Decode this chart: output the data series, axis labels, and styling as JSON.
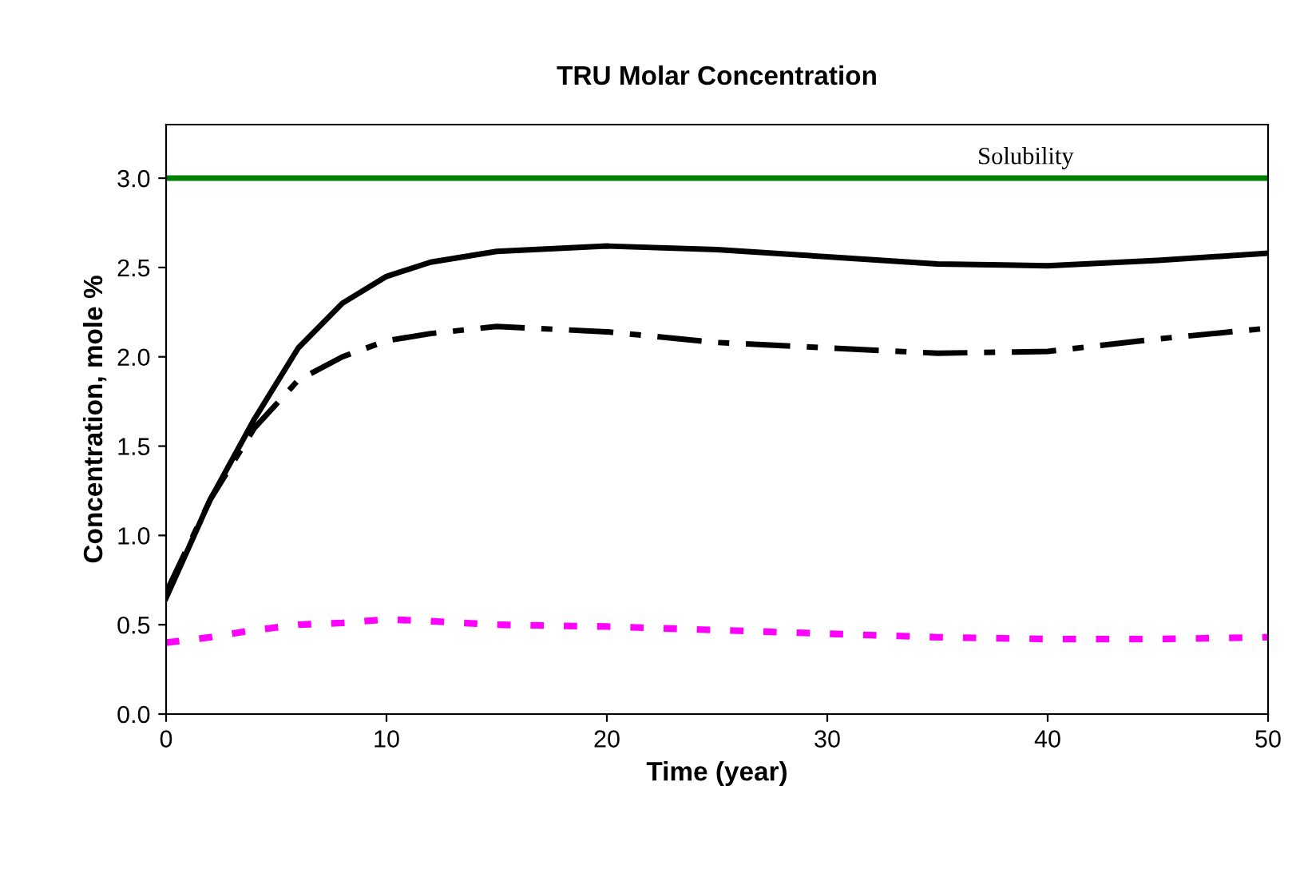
{
  "chart_data": {
    "type": "line",
    "title": "TRU Molar Concentration",
    "xlabel": "Time (year)",
    "ylabel": "Concentration, mole %",
    "x": [
      0,
      2,
      4,
      6,
      8,
      10,
      12,
      15,
      20,
      25,
      30,
      35,
      40,
      45,
      50
    ],
    "series": [
      {
        "color": "#000000",
        "line_style": "solid",
        "values": [
          0.65,
          1.2,
          1.65,
          2.05,
          2.3,
          2.45,
          2.53,
          2.59,
          2.62,
          2.6,
          2.56,
          2.52,
          2.51,
          2.54,
          2.58
        ]
      },
      {
        "color": "#000000",
        "line_style": "dashdot",
        "values": [
          0.68,
          1.2,
          1.6,
          1.87,
          2.0,
          2.09,
          2.13,
          2.17,
          2.14,
          2.08,
          2.05,
          2.02,
          2.03,
          2.1,
          2.16
        ]
      },
      {
        "color": "#ff00ff",
        "line_style": "dotted",
        "values": [
          0.4,
          0.43,
          0.47,
          0.5,
          0.51,
          0.53,
          0.52,
          0.5,
          0.49,
          0.47,
          0.45,
          0.43,
          0.42,
          0.42,
          0.43
        ]
      }
    ],
    "ref_lines": [
      {
        "axis": "y",
        "value": 3.0,
        "label": "Solubility",
        "color": "#008000"
      }
    ],
    "xlim": [
      0,
      50
    ],
    "xticks": [
      0,
      10,
      20,
      30,
      40,
      50
    ],
    "ylim": [
      0,
      3.3
    ],
    "yticks": [
      {
        "value": 0,
        "label": "0.0"
      },
      {
        "value": 0.5,
        "label": "0.5"
      },
      {
        "value": 1,
        "label": "1.0"
      },
      {
        "value": 1.5,
        "label": "1.5"
      },
      {
        "value": 2,
        "label": "2.0"
      },
      {
        "value": 2.5,
        "label": "2.5"
      },
      {
        "value": 3,
        "label": "3.0"
      }
    ],
    "grid": false
  }
}
